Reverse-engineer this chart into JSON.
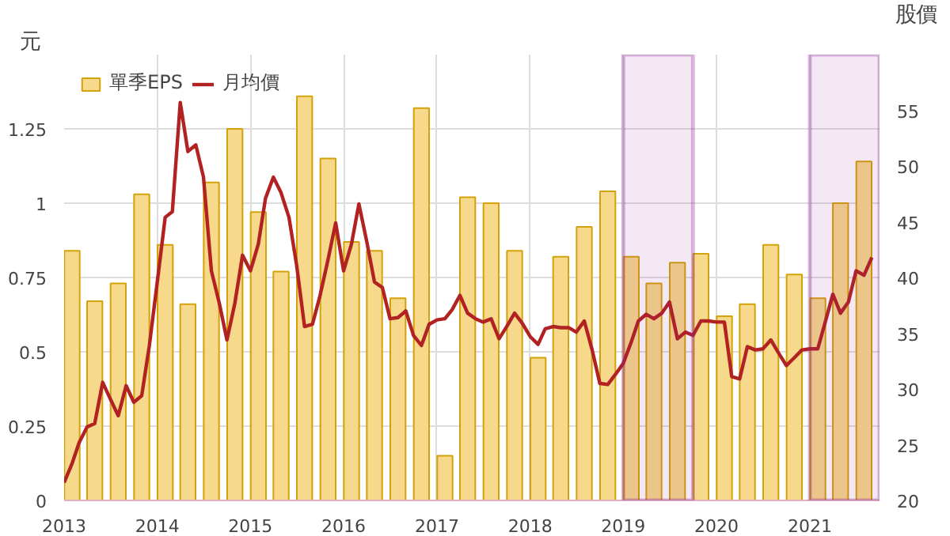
{
  "chart_data": {
    "type": "bar",
    "ylabel": "元",
    "y2label": "股價",
    "series": [
      {
        "name": "單季EPS",
        "color": "#f6d98a",
        "x": [
          "2013-02",
          "2013-05",
          "2013-08",
          "2013-11",
          "2014-02",
          "2014-05",
          "2014-08",
          "2014-11",
          "2015-02",
          "2015-05",
          "2015-08",
          "2015-11",
          "2016-02",
          "2016-05",
          "2016-08",
          "2016-11",
          "2017-02",
          "2017-05",
          "2017-08",
          "2017-11",
          "2018-02",
          "2018-05",
          "2018-08",
          "2018-11",
          "2019-02",
          "2019-05",
          "2019-08",
          "2019-11",
          "2020-02",
          "2020-05",
          "2020-08",
          "2020-11",
          "2021-02",
          "2021-05",
          "2021-08"
        ],
        "values": [
          0.84,
          0.67,
          0.73,
          1.03,
          0.86,
          0.66,
          1.07,
          1.25,
          0.97,
          0.77,
          1.36,
          1.15,
          0.87,
          0.84,
          0.68,
          1.32,
          0.15,
          1.02,
          1.0,
          0.84,
          0.48,
          0.82,
          0.92,
          1.04,
          0.82,
          0.73,
          0.8,
          0.83,
          0.62,
          0.66,
          0.86,
          0.76,
          0.68,
          1.0,
          1.14
        ]
      },
      {
        "name": "月均價",
        "type": "line",
        "axis": "y2",
        "color": "#b22222",
        "x": [
          "2013-01",
          "2013-02",
          "2013-03",
          "2013-04",
          "2013-05",
          "2013-06",
          "2013-07",
          "2013-08",
          "2013-09",
          "2013-10",
          "2013-11",
          "2013-12",
          "2014-01",
          "2014-02",
          "2014-03",
          "2014-04",
          "2014-05",
          "2014-06",
          "2014-07",
          "2014-08",
          "2014-09",
          "2014-10",
          "2014-11",
          "2014-12",
          "2015-01",
          "2015-02",
          "2015-03",
          "2015-04",
          "2015-05",
          "2015-06",
          "2015-07",
          "2015-08",
          "2015-09",
          "2015-10",
          "2015-11",
          "2015-12",
          "2016-01",
          "2016-02",
          "2016-03",
          "2016-04",
          "2016-05",
          "2016-06",
          "2016-07",
          "2016-08",
          "2016-09",
          "2016-10",
          "2016-11",
          "2016-12",
          "2017-01",
          "2017-02",
          "2017-03",
          "2017-04",
          "2017-05",
          "2017-06",
          "2017-07",
          "2017-08",
          "2017-09",
          "2017-10",
          "2017-11",
          "2017-12",
          "2018-01",
          "2018-02",
          "2018-03",
          "2018-04",
          "2018-05",
          "2018-06",
          "2018-07",
          "2018-08",
          "2018-09",
          "2018-10",
          "2018-11",
          "2018-12",
          "2019-01",
          "2019-02",
          "2019-03",
          "2019-04",
          "2019-05",
          "2019-06",
          "2019-07",
          "2019-08",
          "2019-09",
          "2019-10",
          "2019-11",
          "2019-12",
          "2020-01",
          "2020-02",
          "2020-03",
          "2020-04",
          "2020-05",
          "2020-06",
          "2020-07",
          "2020-08",
          "2020-09",
          "2020-10",
          "2020-11",
          "2020-12",
          "2021-01",
          "2021-02",
          "2021-03",
          "2021-04",
          "2021-05",
          "2021-06",
          "2021-07",
          "2021-08",
          "2021-09"
        ],
        "values": [
          21.6,
          23.3,
          25.2,
          26.6,
          26.9,
          30.6,
          29.1,
          27.6,
          30.3,
          28.8,
          29.4,
          33.9,
          39.6,
          45.4,
          45.9,
          55.7,
          51.3,
          51.9,
          49.0,
          40.6,
          37.7,
          34.4,
          37.7,
          42.0,
          40.6,
          43.0,
          47.1,
          49.0,
          47.6,
          45.4,
          41.1,
          35.6,
          35.8,
          38.4,
          41.6,
          44.9,
          40.6,
          43.0,
          46.6,
          43.2,
          39.6,
          39.1,
          36.3,
          36.4,
          37.0,
          34.8,
          33.9,
          35.8,
          36.2,
          36.3,
          37.1,
          38.4,
          36.8,
          36.3,
          36.0,
          36.3,
          34.5,
          35.6,
          36.8,
          35.9,
          34.7,
          34.0,
          35.4,
          35.6,
          35.5,
          35.5,
          35.1,
          36.1,
          33.5,
          30.5,
          30.4,
          31.3,
          32.3,
          34.2,
          36.1,
          36.7,
          36.3,
          36.8,
          37.8,
          34.5,
          35.1,
          34.8,
          36.1,
          36.1,
          36.0,
          36.0,
          31.1,
          30.9,
          33.8,
          33.5,
          33.6,
          34.4,
          33.2,
          32.1,
          32.8,
          33.5,
          33.6,
          33.6,
          35.9,
          38.5,
          36.8,
          37.8,
          40.6,
          40.2,
          41.8
        ]
      }
    ],
    "xlim": [
      "2013",
      "2021-10"
    ],
    "xticks": [
      "2013",
      "2014",
      "2015",
      "2016",
      "2017",
      "2018",
      "2019",
      "2020",
      "2021"
    ],
    "ylim": [
      0,
      1.5
    ],
    "yticks": [
      0,
      0.25,
      0.5,
      0.75,
      1,
      1.25
    ],
    "y2lim": [
      20,
      60
    ],
    "y2ticks": [
      20,
      25,
      30,
      35,
      40,
      45,
      50,
      55
    ],
    "bands": [
      {
        "axis": "x",
        "from": "2019-01",
        "to": "2019-10",
        "label": null,
        "color": "#8b2296"
      },
      {
        "axis": "x",
        "from": "2021-01",
        "to": "2021-10",
        "label": null,
        "color": "#8b2296"
      }
    ],
    "grid": true,
    "legend": "top left"
  }
}
